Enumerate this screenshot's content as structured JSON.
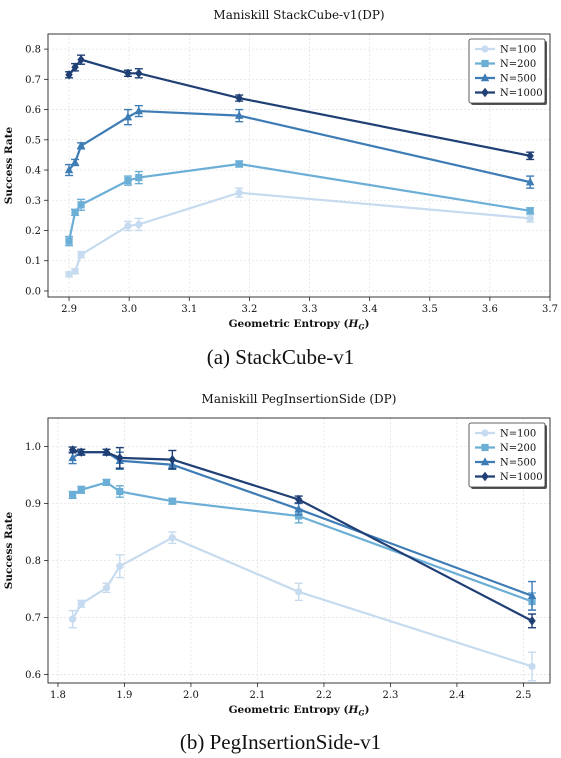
{
  "captions": [
    "(a) StackCube-v1",
    "(b) PegInsertionSide-v1"
  ],
  "colors": {
    "N=100": "#c6dbef",
    "N=200": "#6baed6",
    "N=500": "#3e7cb6",
    "N=1000": "#1f3f75"
  },
  "chart_data": [
    {
      "type": "line",
      "title": "Maniskill StackCube-v1(DP)",
      "xlabel": "Geometric Entropy (H_G)",
      "ylabel": "Success Rate",
      "xlim": [
        2.865,
        3.7
      ],
      "ylim": [
        -0.02,
        0.85
      ],
      "xticks": [
        "2.9",
        "3.0",
        "3.1",
        "3.2",
        "3.3",
        "3.4",
        "3.5",
        "3.6",
        "3.7"
      ],
      "yticks": [
        "0.0",
        "0.1",
        "0.2",
        "0.3",
        "0.4",
        "0.5",
        "0.6",
        "0.7",
        "0.8"
      ],
      "grid": true,
      "legend_position": "top-right",
      "series": [
        {
          "name": "N=100",
          "marker": "circle",
          "x": [
            2.9,
            2.91,
            2.92,
            2.998,
            3.016,
            3.183,
            3.667
          ],
          "y": [
            0.055,
            0.065,
            0.12,
            0.215,
            0.22,
            0.325,
            0.24
          ],
          "err": [
            0.008,
            0.008,
            0.01,
            0.015,
            0.02,
            0.015,
            0.012
          ]
        },
        {
          "name": "N=200",
          "marker": "square",
          "x": [
            2.9,
            2.91,
            2.92,
            2.998,
            3.016,
            3.183,
            3.667
          ],
          "y": [
            0.165,
            0.26,
            0.285,
            0.365,
            0.375,
            0.42,
            0.265
          ],
          "err": [
            0.015,
            0.01,
            0.018,
            0.015,
            0.02,
            0.01,
            0.01
          ]
        },
        {
          "name": "N=500",
          "marker": "triangle",
          "x": [
            2.9,
            2.91,
            2.92,
            2.998,
            3.016,
            3.183,
            3.667
          ],
          "y": [
            0.4,
            0.425,
            0.48,
            0.575,
            0.595,
            0.58,
            0.36
          ],
          "err": [
            0.018,
            0.01,
            0.01,
            0.025,
            0.018,
            0.02,
            0.02
          ]
        },
        {
          "name": "N=1000",
          "marker": "diamond",
          "x": [
            2.9,
            2.91,
            2.92,
            2.998,
            3.016,
            3.183,
            3.667
          ],
          "y": [
            0.715,
            0.74,
            0.765,
            0.72,
            0.72,
            0.638,
            0.447
          ],
          "err": [
            0.01,
            0.012,
            0.015,
            0.01,
            0.015,
            0.01,
            0.012
          ]
        }
      ]
    },
    {
      "type": "line",
      "title": "Maniskill PegInsertionSide (DP)",
      "xlabel": "Geometric Entropy (H_G)",
      "ylabel": "Success Rate",
      "xlim": [
        1.785,
        2.54
      ],
      "ylim": [
        0.585,
        1.05
      ],
      "xticks": [
        "1.8",
        "1.9",
        "2.0",
        "2.1",
        "2.2",
        "2.3",
        "2.4",
        "2.5"
      ],
      "yticks": [
        "0.6",
        "0.7",
        "0.8",
        "0.9",
        "1.0"
      ],
      "grid": true,
      "legend_position": "top-right",
      "series": [
        {
          "name": "N=100",
          "marker": "circle",
          "x": [
            1.822,
            1.835,
            1.873,
            1.893,
            1.972,
            2.162,
            2.513
          ],
          "y": [
            0.697,
            0.724,
            0.752,
            0.79,
            0.84,
            0.745,
            0.614
          ],
          "err": [
            0.015,
            0.006,
            0.008,
            0.02,
            0.01,
            0.015,
            0.025
          ]
        },
        {
          "name": "N=200",
          "marker": "square",
          "x": [
            1.822,
            1.835,
            1.873,
            1.893,
            1.972,
            2.162,
            2.513
          ],
          "y": [
            0.915,
            0.924,
            0.937,
            0.921,
            0.904,
            0.878,
            0.728
          ],
          "err": [
            0.006,
            0.006,
            0.005,
            0.01,
            0.005,
            0.012,
            0.015
          ]
        },
        {
          "name": "N=500",
          "marker": "triangle",
          "x": [
            1.822,
            1.835,
            1.873,
            1.893,
            1.972,
            2.162,
            2.513
          ],
          "y": [
            0.98,
            0.99,
            0.99,
            0.975,
            0.968,
            0.89,
            0.738
          ],
          "err": [
            0.01,
            0.005,
            0.005,
            0.015,
            0.008,
            0.01,
            0.025
          ]
        },
        {
          "name": "N=1000",
          "marker": "diamond",
          "x": [
            1.822,
            1.835,
            1.873,
            1.893,
            1.972,
            2.162,
            2.513
          ],
          "y": [
            0.994,
            0.99,
            0.99,
            0.98,
            0.977,
            0.907,
            0.694
          ],
          "err": [
            0.005,
            0.005,
            0.005,
            0.018,
            0.016,
            0.006,
            0.012
          ]
        }
      ]
    }
  ]
}
